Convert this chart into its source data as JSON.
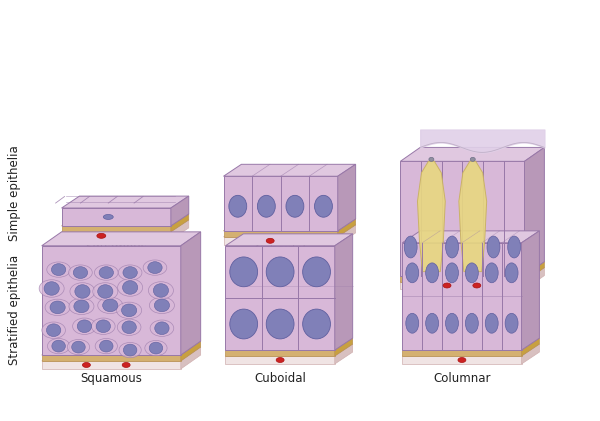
{
  "bg_color": "#ffffff",
  "cell_light": "#d8b8d8",
  "cell_mid": "#c8a8c8",
  "cell_top": "#e0c8e0",
  "cell_side": "#b898b8",
  "cell_edge": "#9878a8",
  "nucleus_fill": "#8080b8",
  "nucleus_edge": "#6060a0",
  "basement_fill": "#d4b070",
  "basement_edge": "#b89050",
  "connective_fill": "#f0e4e4",
  "connective_edge": "#d0b0b0",
  "goblet_fill": "#e8d880",
  "goblet_edge": "#c8b060",
  "blood_fill": "#cc2222",
  "blood_edge": "#aa1111",
  "top_wave_color": "#e0d0e8",
  "label_color": "#222222",
  "label_simple": "Simple epithelia",
  "label_stratified": "Stratified epithelia",
  "labels_col": [
    "Squamous",
    "Cuboidal",
    "Columnar"
  ],
  "font_main": 8.5,
  "font_side": 8.5
}
